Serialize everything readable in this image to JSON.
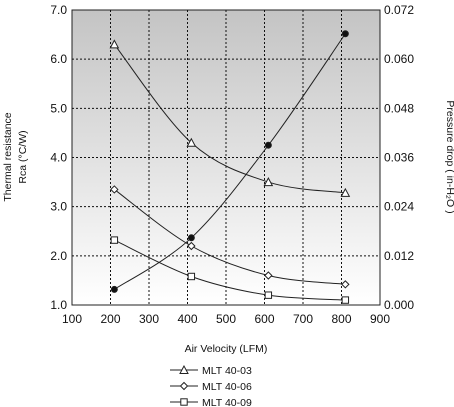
{
  "chart_data": {
    "type": "line",
    "xlabel": "Air Velocity (LFM)",
    "ylabel_left_line1": "Thermal resistance",
    "ylabel_left_line2": "Rca (°C/W)",
    "ylabel_right": "Pressure drop  ( in-H₂O )",
    "xlim": [
      100,
      900
    ],
    "x_ticks": [
      "100",
      "200",
      "300",
      "400",
      "500",
      "600",
      "700",
      "800",
      "900"
    ],
    "ylim_left": [
      1.0,
      7.0
    ],
    "y_ticks_left": [
      "1.0",
      "2.0",
      "3.0",
      "4.0",
      "5.0",
      "6.0",
      "7.0"
    ],
    "ylim_right": [
      0.0,
      0.072
    ],
    "y_ticks_right": [
      "0.000",
      "0.012",
      "0.024",
      "0.036",
      "0.048",
      "0.060",
      "0.072"
    ],
    "grid": true,
    "legend_position": "bottom-center",
    "series": [
      {
        "name": "MLT 40-03",
        "axis": "left",
        "marker": "triangle",
        "x": [
          210,
          410,
          610,
          810
        ],
        "values": [
          6.3,
          4.3,
          3.5,
          3.28
        ]
      },
      {
        "name": "MLT 40-06",
        "axis": "left",
        "marker": "diamond",
        "x": [
          210,
          410,
          610,
          810
        ],
        "values": [
          3.35,
          2.2,
          1.6,
          1.42
        ]
      },
      {
        "name": "MLT 40-09",
        "axis": "left",
        "marker": "square",
        "x": [
          210,
          410,
          610,
          810
        ],
        "values": [
          2.32,
          1.58,
          1.2,
          1.1
        ]
      },
      {
        "axis": "right",
        "marker": "filled-circle",
        "x": [
          210,
          410,
          610,
          810
        ],
        "values": [
          0.0038,
          0.0164,
          0.039,
          0.0662
        ]
      }
    ]
  }
}
